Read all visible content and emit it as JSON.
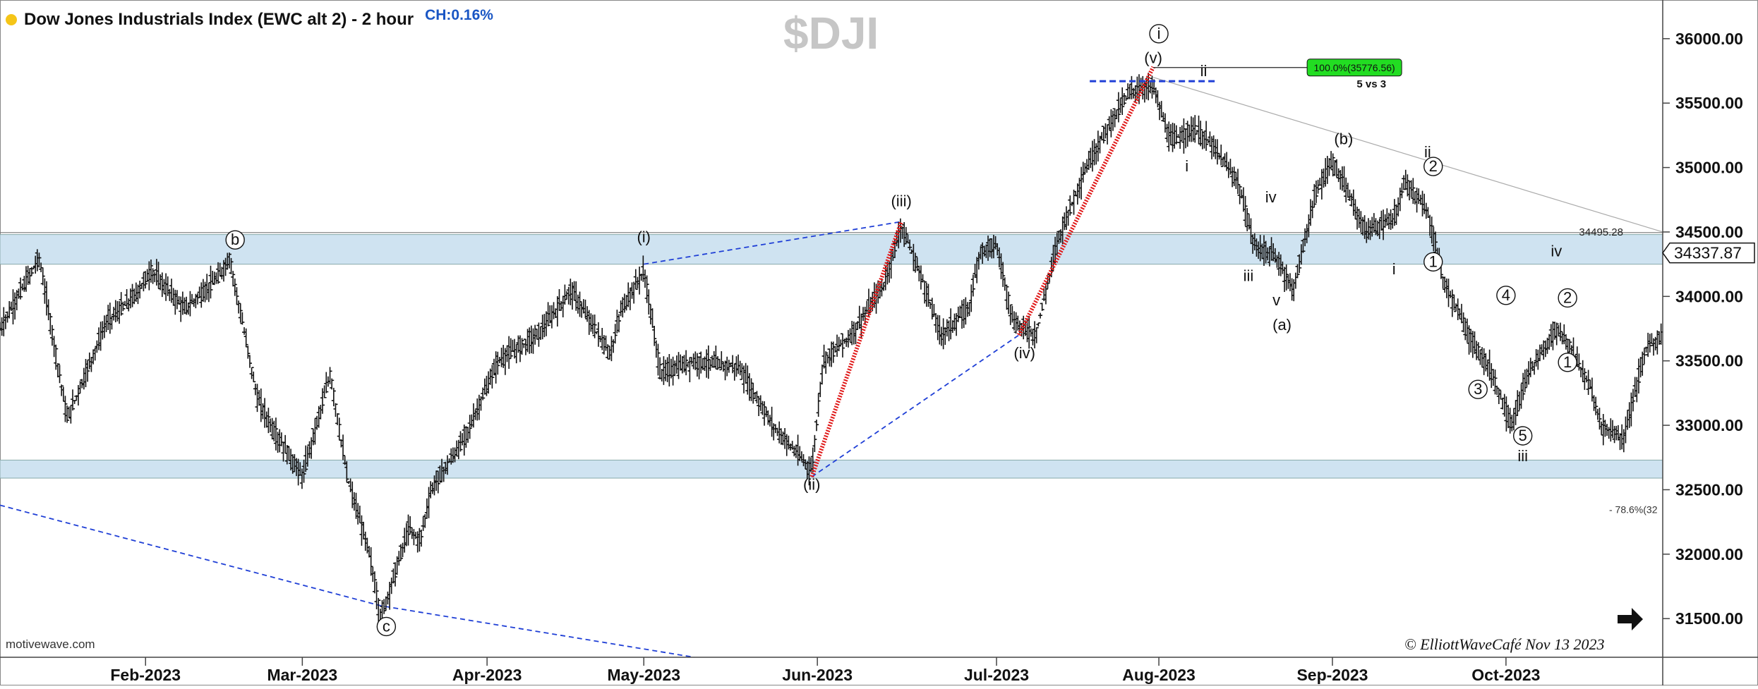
{
  "header": {
    "title": "Dow Jones Industrials Index (EWC alt 2) - 2 hour",
    "change": "CH:0.16%"
  },
  "watermark": "$DJI",
  "brand": "motivewave.com",
  "copyright": "© ElliottWaveCafé  Nov 13 2023",
  "colors": {
    "price": "#111111",
    "impulse": "#e01818",
    "trend": "#1f3fd6",
    "zone": "#cfe3f1",
    "box": "#22dd22"
  },
  "chart_data": {
    "type": "bar",
    "x_axis": {
      "type": "date",
      "ticks": [
        "Feb-2023",
        "Mar-2023",
        "Apr-2023",
        "May-2023",
        "Jun-2023",
        "Jul-2023",
        "Aug-2023",
        "Sep-2023",
        "Oct-2023"
      ],
      "tick_dates": [
        "2023-02-01",
        "2023-03-01",
        "2023-04-03",
        "2023-05-01",
        "2023-06-01",
        "2023-07-03",
        "2023-08-01",
        "2023-09-01",
        "2023-10-02"
      ],
      "range": [
        "2023-01-06",
        "2023-10-30"
      ]
    },
    "y_axis": {
      "ticks": [
        "31500.00",
        "32000.00",
        "32500.00",
        "33000.00",
        "33500.00",
        "34000.00",
        "34500.00",
        "35000.00",
        "35500.00",
        "36000.00"
      ],
      "range": [
        31200,
        36300
      ]
    },
    "last_price": "34337.87",
    "level_label": "34495.28",
    "fib_label": "100.0%(35776.56)",
    "fib_note": "5 vs 3",
    "fib_label_2": "- 78.6%(32",
    "zones": [
      [
        34250,
        34480
      ],
      [
        32590,
        32730
      ]
    ],
    "price_points": [
      [
        "2023-01-06",
        33750
      ],
      [
        "2023-01-13",
        34300
      ],
      [
        "2023-01-18",
        33050
      ],
      [
        "2023-01-25",
        33800
      ],
      [
        "2023-01-30",
        34000
      ],
      [
        "2023-02-02",
        34200
      ],
      [
        "2023-02-08",
        33900
      ],
      [
        "2023-02-14",
        34150
      ],
      [
        "2023-02-16",
        34300
      ],
      [
        "2023-02-21",
        33200
      ],
      [
        "2023-02-24",
        32950
      ],
      [
        "2023-03-01",
        32600
      ],
      [
        "2023-03-06",
        33400
      ],
      [
        "2023-03-09",
        32600
      ],
      [
        "2023-03-13",
        32000
      ],
      [
        "2023-03-15",
        31500
      ],
      [
        "2023-03-20",
        32200
      ],
      [
        "2023-03-22",
        32100
      ],
      [
        "2023-03-24",
        32500
      ],
      [
        "2023-03-30",
        32900
      ],
      [
        "2023-04-05",
        33500
      ],
      [
        "2023-04-12",
        33700
      ],
      [
        "2023-04-18",
        34050
      ],
      [
        "2023-04-25",
        33550
      ],
      [
        "2023-04-27",
        33900
      ],
      [
        "2023-05-01",
        34200
      ],
      [
        "2023-05-04",
        33400
      ],
      [
        "2023-05-10",
        33500
      ],
      [
        "2023-05-18",
        33450
      ],
      [
        "2023-05-24",
        33000
      ],
      [
        "2023-05-31",
        32650
      ],
      [
        "2023-06-02",
        33500
      ],
      [
        "2023-06-07",
        33700
      ],
      [
        "2023-06-13",
        34100
      ],
      [
        "2023-06-16",
        34550
      ],
      [
        "2023-06-20",
        34100
      ],
      [
        "2023-06-23",
        33700
      ],
      [
        "2023-06-28",
        33900
      ],
      [
        "2023-06-30",
        34350
      ],
      [
        "2023-07-03",
        34400
      ],
      [
        "2023-07-06",
        33800
      ],
      [
        "2023-07-10",
        33700
      ],
      [
        "2023-07-14",
        34450
      ],
      [
        "2023-07-19",
        35000
      ],
      [
        "2023-07-24",
        35400
      ],
      [
        "2023-07-27",
        35600
      ],
      [
        "2023-07-31",
        35630
      ],
      [
        "2023-08-03",
        35200
      ],
      [
        "2023-08-07",
        35300
      ],
      [
        "2023-08-10",
        35200
      ],
      [
        "2023-08-15",
        34900
      ],
      [
        "2023-08-18",
        34400
      ],
      [
        "2023-08-22",
        34300
      ],
      [
        "2023-08-25",
        34050
      ],
      [
        "2023-08-29",
        34800
      ],
      [
        "2023-09-01",
        35050
      ],
      [
        "2023-09-07",
        34500
      ],
      [
        "2023-09-12",
        34600
      ],
      [
        "2023-09-14",
        34900
      ],
      [
        "2023-09-18",
        34650
      ],
      [
        "2023-09-21",
        34100
      ],
      [
        "2023-09-26",
        33650
      ],
      [
        "2023-09-29",
        33450
      ],
      [
        "2023-10-03",
        33000
      ],
      [
        "2023-10-06",
        33400
      ],
      [
        "2023-10-11",
        33750
      ],
      [
        "2023-10-13",
        33650
      ],
      [
        "2023-10-17",
        33300
      ],
      [
        "2023-10-19",
        33000
      ],
      [
        "2023-10-23",
        32900
      ],
      [
        "2023-10-27",
        33600
      ],
      [
        "2023-10-30",
        33700
      ]
    ],
    "impulse_lines": [
      [
        [
          "2023-05-31",
          32600
        ],
        [
          "2023-06-16",
          34580
        ]
      ],
      [
        [
          "2023-07-07",
          33700
        ],
        [
          "2023-07-31",
          35780
        ]
      ]
    ],
    "trend_lines": [
      [
        [
          "2023-01-06",
          32380
        ],
        [
          "2023-03-15",
          31600
        ],
        [
          "2023-05-10",
          31200
        ]
      ],
      [
        [
          "2023-05-01",
          34250
        ],
        [
          "2023-06-16",
          34580
        ]
      ],
      [
        [
          "2023-05-31",
          32600
        ],
        [
          "2023-07-07",
          33700
        ]
      ]
    ],
    "gray_line": [
      [
        "2023-07-31",
        35700
      ],
      [
        "2023-10-30",
        34500
      ]
    ],
    "wave_labels": [
      {
        "text": "b",
        "date": "2023-02-17",
        "price": 34400,
        "circled": true
      },
      {
        "text": "c",
        "date": "2023-03-16",
        "price": 31400,
        "circled": true
      },
      {
        "text": "(i)",
        "date": "2023-05-01",
        "price": 34420
      },
      {
        "text": "(ii)",
        "date": "2023-05-31",
        "price": 32500
      },
      {
        "text": "(iii)",
        "date": "2023-06-16",
        "price": 34700
      },
      {
        "text": "(iv)",
        "date": "2023-07-08",
        "price": 33520
      },
      {
        "text": "i",
        "date": "2023-08-01",
        "price": 36000,
        "circled": true
      },
      {
        "text": "(v)",
        "date": "2023-07-31",
        "price": 35810
      },
      {
        "text": "ii",
        "date": "2023-08-09",
        "price": 35710
      },
      {
        "text": "i",
        "date": "2023-08-06",
        "price": 34970
      },
      {
        "text": "iii",
        "date": "2023-08-17",
        "price": 34120
      },
      {
        "text": "iv",
        "date": "2023-08-21",
        "price": 34730
      },
      {
        "text": "v",
        "date": "2023-08-22",
        "price": 33930
      },
      {
        "text": "(a)",
        "date": "2023-08-23",
        "price": 33740
      },
      {
        "text": "(b)",
        "date": "2023-09-03",
        "price": 35180
      },
      {
        "text": "i",
        "date": "2023-09-12",
        "price": 34170
      },
      {
        "text": "ii",
        "date": "2023-09-18",
        "price": 35080
      },
      {
        "text": "2",
        "date": "2023-09-19",
        "price": 34970,
        "circled": true
      },
      {
        "text": "1",
        "date": "2023-09-19",
        "price": 34230,
        "circled": true
      },
      {
        "text": "4",
        "date": "2023-10-02",
        "price": 33970,
        "circled": true
      },
      {
        "text": "3",
        "date": "2023-09-27",
        "price": 33240,
        "circled": true
      },
      {
        "text": "5",
        "date": "2023-10-05",
        "price": 32880,
        "circled": true
      },
      {
        "text": "iii",
        "date": "2023-10-05",
        "price": 32720
      },
      {
        "text": "iv",
        "date": "2023-10-11",
        "price": 34310
      },
      {
        "text": "2",
        "date": "2023-10-13",
        "price": 33950,
        "circled": true
      },
      {
        "text": "1",
        "date": "2023-10-13",
        "price": 33450,
        "circled": true
      }
    ]
  }
}
